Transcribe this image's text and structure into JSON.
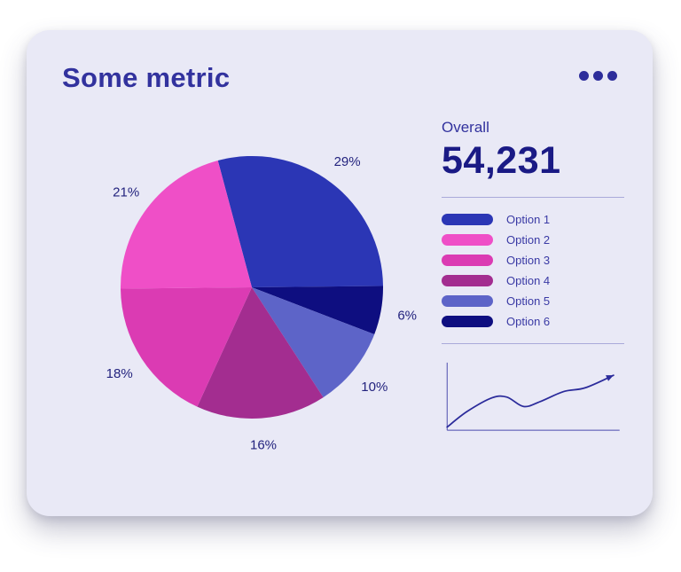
{
  "card": {
    "title": "Some metric",
    "menu_icon": "ellipsis-icon"
  },
  "overall": {
    "label": "Overall",
    "value": "54,231"
  },
  "colors": {
    "card_bg": "#E9E9F6",
    "title": "#32329E",
    "overall_value": "#1A1A85",
    "divider": "#A9A9DA",
    "pie_label": "#23237E",
    "spark_axis": "#4A4AAE",
    "spark_line": "#2B2B9B"
  },
  "chart_data": [
    {
      "type": "pie",
      "title": "Some metric",
      "unit": "percent",
      "start_angle_deg": -15,
      "legend_position": "right",
      "slice_order": [
        "Option 1",
        "Option 6",
        "Option 5",
        "Option 4",
        "Option 3",
        "Option 2"
      ],
      "series": [
        {
          "name": "Option 1",
          "value": 29,
          "color": "#2B36B5"
        },
        {
          "name": "Option 2",
          "value": 21,
          "color": "#EF4FC7"
        },
        {
          "name": "Option 3",
          "value": 18,
          "color": "#DB3BB3"
        },
        {
          "name": "Option 4",
          "value": 16,
          "color": "#A32D90"
        },
        {
          "name": "Option 5",
          "value": 10,
          "color": "#5D64C8"
        },
        {
          "name": "Option 6",
          "value": 6,
          "color": "#0E0E80"
        }
      ],
      "labels": [
        "29%",
        "21%",
        "18%",
        "16%",
        "10%",
        "6%"
      ]
    },
    {
      "type": "line",
      "style": "sparkline",
      "axes": "left-bottom",
      "arrow_end": true,
      "points": [
        [
          0.0,
          0.05
        ],
        [
          0.12,
          0.3
        ],
        [
          0.27,
          0.52
        ],
        [
          0.36,
          0.53
        ],
        [
          0.46,
          0.38
        ],
        [
          0.56,
          0.46
        ],
        [
          0.7,
          0.62
        ],
        [
          0.83,
          0.68
        ],
        [
          1.0,
          0.88
        ]
      ]
    }
  ]
}
